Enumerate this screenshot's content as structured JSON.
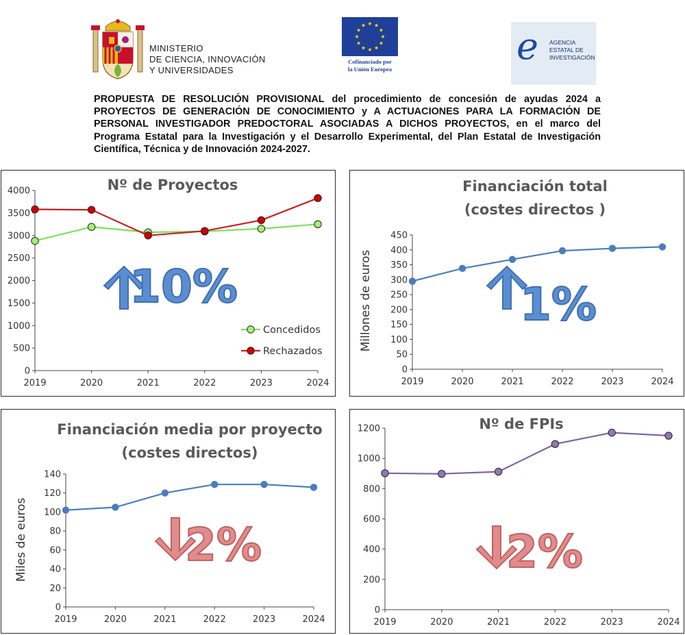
{
  "header": {
    "ministry_lines": [
      "MINISTERIO",
      "DE CIENCIA, INNOVACIÓN",
      "Y UNIVERSIDADES"
    ],
    "eu_lines": [
      "Cofinanciado por",
      "la Unión Europea"
    ],
    "agency_mark": "e",
    "agency_lines": [
      "AGENCIA",
      "ESTATAL DE",
      "INVESTIGACIÓN"
    ],
    "resolution_text": "PROPUESTA DE RESOLUCIÓN PROVISIONAL del procedimiento de concesión de ayudas 2024 a PROYECTOS DE GENERACIÓN DE CONOCIMIENTO y A ACTUACIONES PARA LA FORMACIÓN DE PERSONAL INVESTIGADOR PREDOCTORAL ASOCIADAS A DICHOS PROYECTOS, en el marco del Programa Estatal para la Investigación y el Desarrollo Experimental, del Plan Estatal de Investigación Científica, Técnica y de Innovación 2024-2027.",
    "colors": {
      "eu_blue": "#1f3f99",
      "eu_star": "#ffdd00",
      "agency_blue": "#1f4aa0",
      "agency_bg": "#e3ebf5",
      "spain_red": "#c8102e",
      "spain_gold": "#e8b91c"
    }
  },
  "chart_data": [
    {
      "type": "line",
      "title": "Nº de Proyectos",
      "x": [
        "2019",
        "2020",
        "2021",
        "2022",
        "2023",
        "2024"
      ],
      "series": [
        {
          "name": "Concedidos",
          "values": [
            2880,
            3190,
            3070,
            3090,
            3150,
            3250
          ],
          "color": "#7ee05a",
          "marker": "#a2f26e"
        },
        {
          "name": "Rechazados",
          "values": [
            3580,
            3570,
            3000,
            3100,
            3340,
            3830
          ],
          "color": "#cc1f1f",
          "marker": "#d40000"
        }
      ],
      "ylim": [
        0,
        4000
      ],
      "yticks": [
        "0",
        "500",
        "1000",
        "1500",
        "2000",
        "2500",
        "3000",
        "3500",
        "4000"
      ],
      "xlabel": "",
      "ylabel": "",
      "legend": "bottom-right",
      "grid": false,
      "annotation": {
        "arrow": "up",
        "text": "10%",
        "color": "#5b8ed0"
      }
    },
    {
      "type": "line",
      "title": "Financiación total (costes directos )",
      "title_lines": [
        "Financiación total",
        "(costes directos )"
      ],
      "x": [
        "2019",
        "2020",
        "2021",
        "2022",
        "2023",
        "2024"
      ],
      "series": [
        {
          "values": [
            295,
            338,
            368,
            397,
            405,
            410
          ],
          "color": "#4a7ebb"
        }
      ],
      "ylim": [
        0,
        450
      ],
      "yticks": [
        "0",
        "50",
        "100",
        "150",
        "200",
        "250",
        "300",
        "350",
        "400",
        "450"
      ],
      "xlabel": "",
      "ylabel": "Millones de euros",
      "grid": false,
      "annotation": {
        "arrow": "up",
        "text": "1%",
        "color": "#5b8ed0"
      }
    },
    {
      "type": "line",
      "title": "Financiación media por proyecto (costes directos)",
      "title_lines": [
        "Financiación media por proyecto",
        "(costes directos)"
      ],
      "x": [
        "2019",
        "2020",
        "2021",
        "2022",
        "2023",
        "2024"
      ],
      "series": [
        {
          "values": [
            102,
            105,
            120,
            129,
            129,
            126
          ],
          "color": "#4a7ebb"
        }
      ],
      "ylim": [
        0,
        140
      ],
      "yticks": [
        "0",
        "20",
        "40",
        "60",
        "80",
        "100",
        "120",
        "140"
      ],
      "xlabel": "",
      "ylabel": "Miles de euros",
      "grid": false,
      "annotation": {
        "arrow": "down",
        "text": "2%",
        "color": "#e08c8c"
      }
    },
    {
      "type": "line",
      "title": "Nº de FPIs",
      "x": [
        "2019",
        "2020",
        "2021",
        "2022",
        "2023",
        "2024"
      ],
      "series": [
        {
          "values": [
            902,
            898,
            912,
            1095,
            1170,
            1150
          ],
          "color": "#8064a2",
          "marker": "#8f78b4"
        }
      ],
      "ylim": [
        0,
        1200
      ],
      "yticks": [
        "0",
        "200",
        "400",
        "600",
        "800",
        "1000",
        "1200"
      ],
      "xlabel": "",
      "ylabel": "",
      "grid": false,
      "annotation": {
        "arrow": "down",
        "text": "2%",
        "color": "#e08c8c"
      }
    }
  ]
}
